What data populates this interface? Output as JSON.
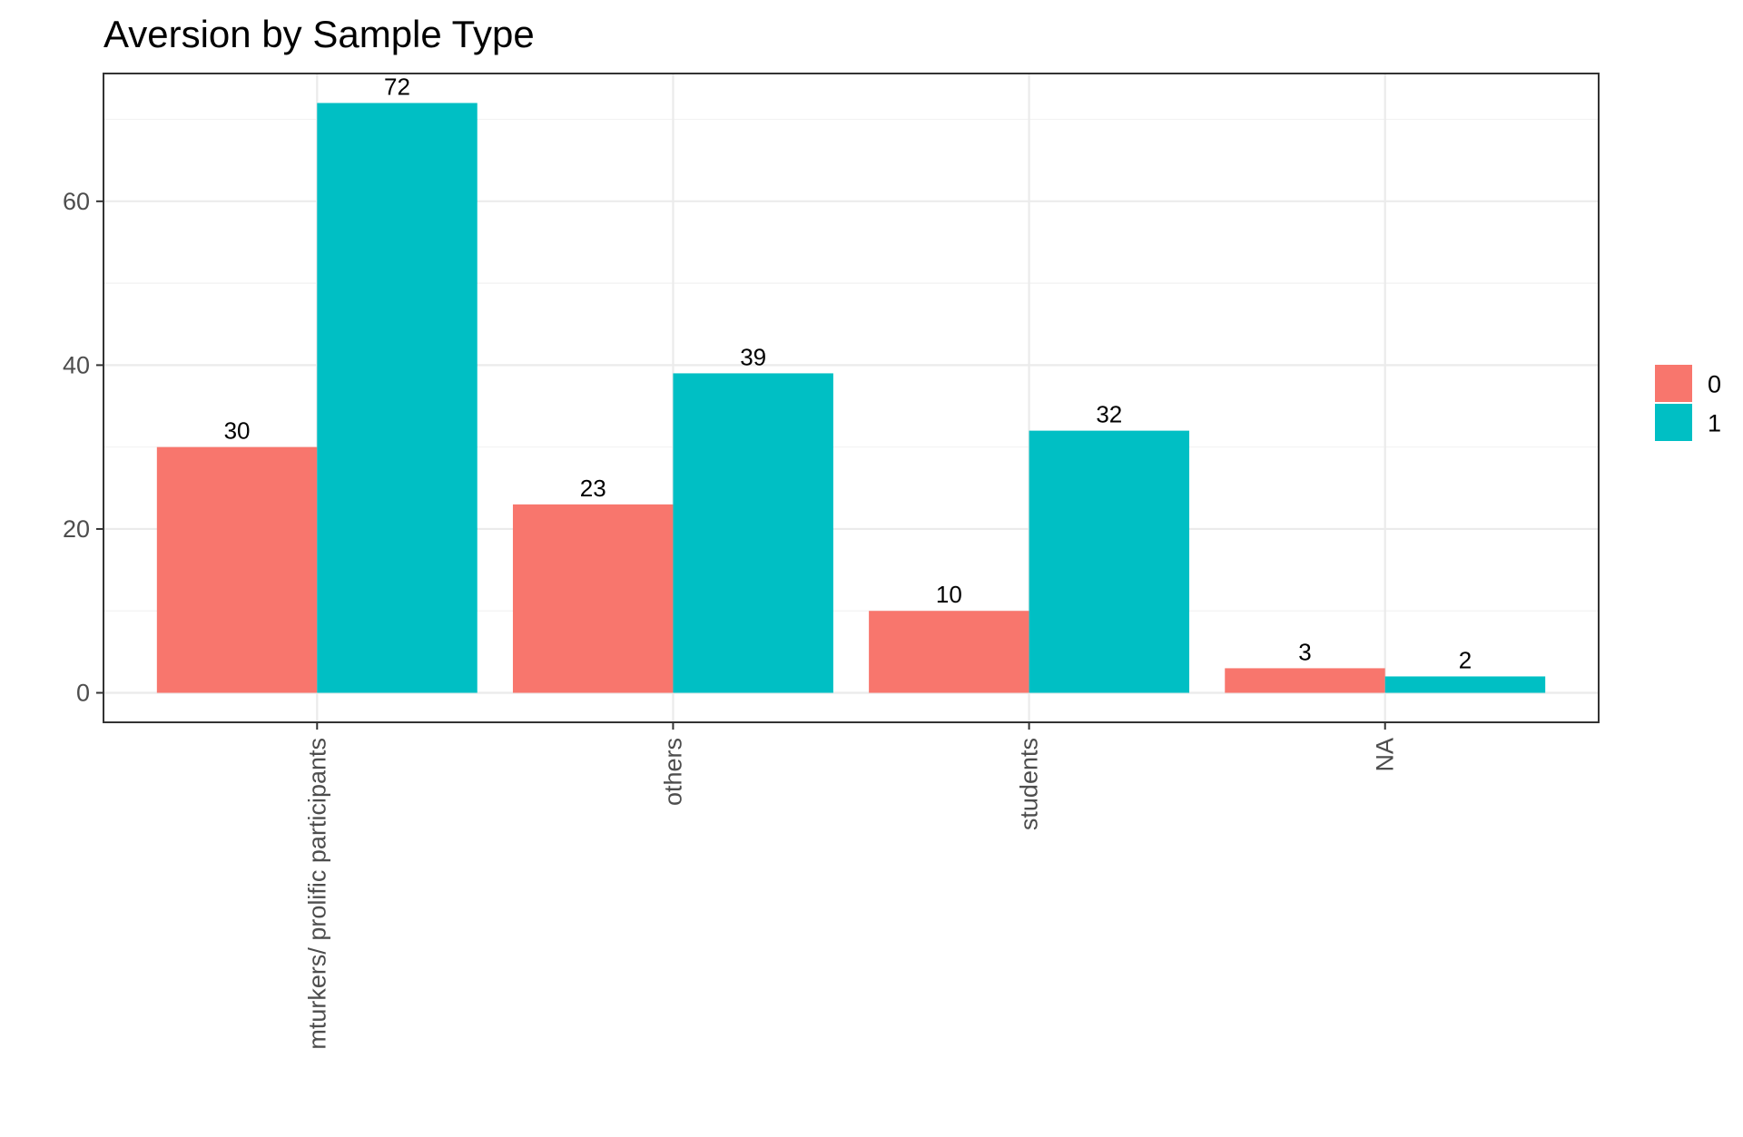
{
  "chart_data": {
    "type": "bar",
    "title": "Aversion by Sample Type",
    "xlabel": "",
    "ylabel": "",
    "categories": [
      "mturkers/ prolific participants",
      "others",
      "students",
      "NA"
    ],
    "series": [
      {
        "name": "0",
        "color": "#F8766D",
        "values": [
          30,
          23,
          10,
          3
        ]
      },
      {
        "name": "1",
        "color": "#00BFC4",
        "values": [
          72,
          39,
          32,
          2
        ]
      }
    ],
    "ylim": [
      -3.6,
      75.6
    ],
    "yticks": [
      0,
      20,
      40,
      60
    ],
    "grid": true,
    "legend_position": "right",
    "legend_title": ""
  }
}
